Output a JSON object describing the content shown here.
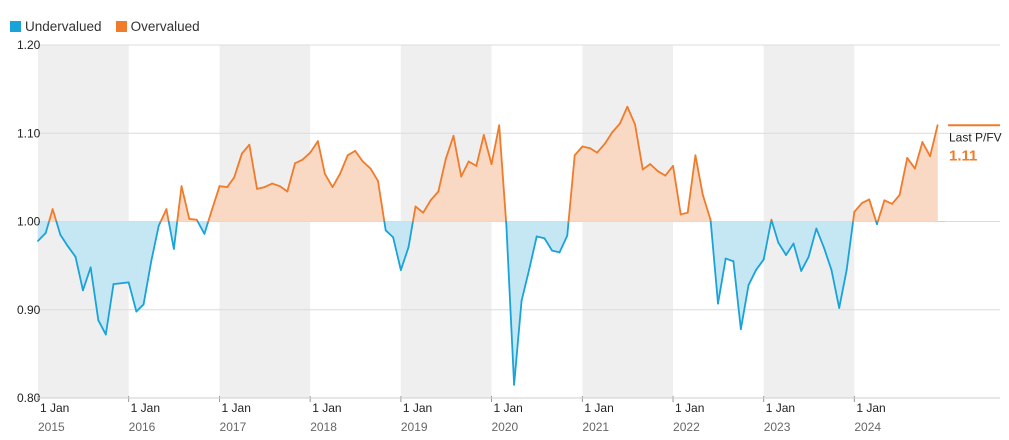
{
  "legend": [
    {
      "label": "Undervalued",
      "color": "#1aa3d9"
    },
    {
      "label": "Overvalued",
      "color": "#f07b2b"
    }
  ],
  "annotation": {
    "label": "Last P/FV",
    "value": "1.11"
  },
  "chart_data": {
    "type": "area",
    "title": "",
    "xlabel": "",
    "ylabel": "",
    "baseline": 1.0,
    "ylim": [
      0.8,
      1.2
    ],
    "yticks": [
      {
        "value": 1.2,
        "label": "1.20"
      },
      {
        "value": 1.1,
        "label": "1.10"
      },
      {
        "value": 1.0,
        "label": "1.00"
      },
      {
        "value": 0.9,
        "label": "0.90"
      },
      {
        "value": 0.8,
        "label": "0.80"
      }
    ],
    "xlim": [
      "2015-01-01",
      "2024-12-31"
    ],
    "year_bands": [
      "2015",
      "2017",
      "2019",
      "2021",
      "2023"
    ],
    "xticks": [
      {
        "date": "2015-01-01",
        "label": "1 Jan",
        "year": "2015"
      },
      {
        "date": "2016-01-01",
        "label": "1 Jan",
        "year": "2016"
      },
      {
        "date": "2017-01-01",
        "label": "1 Jan",
        "year": "2017"
      },
      {
        "date": "2018-01-01",
        "label": "1 Jan",
        "year": "2018"
      },
      {
        "date": "2019-01-01",
        "label": "1 Jan",
        "year": "2019"
      },
      {
        "date": "2020-01-01",
        "label": "1 Jan",
        "year": "2020"
      },
      {
        "date": "2021-01-01",
        "label": "1 Jan",
        "year": "2021"
      },
      {
        "date": "2022-01-01",
        "label": "1 Jan",
        "year": "2022"
      },
      {
        "date": "2023-01-01",
        "label": "1 Jan",
        "year": "2023"
      },
      {
        "date": "2024-01-01",
        "label": "1 Jan",
        "year": "2024"
      }
    ],
    "series": [
      {
        "name": "P/FV",
        "colors": {
          "above": "#f07b2b",
          "below": "#1aa3d9",
          "above_fill": "#f9d8c4",
          "below_fill": "#c5e7f3"
        },
        "points": [
          [
            "2015-01-01",
            0.978
          ],
          [
            "2015-02-01",
            0.987
          ],
          [
            "2015-03-01",
            1.014
          ],
          [
            "2015-04-01",
            0.985
          ],
          [
            "2015-05-01",
            0.972
          ],
          [
            "2015-06-01",
            0.96
          ],
          [
            "2015-07-01",
            0.922
          ],
          [
            "2015-08-01",
            0.948
          ],
          [
            "2015-09-01",
            0.888
          ],
          [
            "2015-10-01",
            0.872
          ],
          [
            "2015-11-01",
            0.929
          ],
          [
            "2015-12-01",
            0.93
          ],
          [
            "2016-01-01",
            0.931
          ],
          [
            "2016-02-01",
            0.898
          ],
          [
            "2016-03-01",
            0.906
          ],
          [
            "2016-04-01",
            0.955
          ],
          [
            "2016-05-01",
            0.995
          ],
          [
            "2016-06-01",
            1.014
          ],
          [
            "2016-07-01",
            0.969
          ],
          [
            "2016-08-01",
            1.04
          ],
          [
            "2016-09-01",
            1.003
          ],
          [
            "2016-10-01",
            1.002
          ],
          [
            "2016-11-01",
            0.986
          ],
          [
            "2016-12-01",
            1.013
          ],
          [
            "2017-01-01",
            1.04
          ],
          [
            "2017-02-01",
            1.039
          ],
          [
            "2017-03-01",
            1.05
          ],
          [
            "2017-04-01",
            1.077
          ],
          [
            "2017-05-01",
            1.087
          ],
          [
            "2017-06-01",
            1.037
          ],
          [
            "2017-07-01",
            1.039
          ],
          [
            "2017-08-01",
            1.043
          ],
          [
            "2017-09-01",
            1.04
          ],
          [
            "2017-10-01",
            1.034
          ],
          [
            "2017-11-01",
            1.066
          ],
          [
            "2017-12-01",
            1.07
          ],
          [
            "2018-01-01",
            1.078
          ],
          [
            "2018-02-01",
            1.091
          ],
          [
            "2018-03-01",
            1.054
          ],
          [
            "2018-04-01",
            1.039
          ],
          [
            "2018-05-01",
            1.054
          ],
          [
            "2018-06-01",
            1.075
          ],
          [
            "2018-07-01",
            1.08
          ],
          [
            "2018-08-01",
            1.068
          ],
          [
            "2018-09-01",
            1.06
          ],
          [
            "2018-10-01",
            1.046
          ],
          [
            "2018-11-01",
            0.99
          ],
          [
            "2018-12-01",
            0.982
          ],
          [
            "2019-01-01",
            0.945
          ],
          [
            "2019-02-01",
            0.971
          ],
          [
            "2019-03-01",
            1.017
          ],
          [
            "2019-04-01",
            1.01
          ],
          [
            "2019-05-01",
            1.024
          ],
          [
            "2019-06-01",
            1.034
          ],
          [
            "2019-07-01",
            1.071
          ],
          [
            "2019-08-01",
            1.097
          ],
          [
            "2019-09-01",
            1.051
          ],
          [
            "2019-10-01",
            1.068
          ],
          [
            "2019-11-01",
            1.063
          ],
          [
            "2019-12-01",
            1.098
          ],
          [
            "2020-01-01",
            1.065
          ],
          [
            "2020-02-01",
            1.109
          ],
          [
            "2020-03-01",
            0.995
          ],
          [
            "2020-04-01",
            0.815
          ],
          [
            "2020-05-01",
            0.91
          ],
          [
            "2020-06-01",
            0.946
          ],
          [
            "2020-07-01",
            0.983
          ],
          [
            "2020-08-01",
            0.981
          ],
          [
            "2020-09-01",
            0.967
          ],
          [
            "2020-10-01",
            0.965
          ],
          [
            "2020-11-01",
            0.984
          ],
          [
            "2020-12-01",
            1.075
          ],
          [
            "2021-01-01",
            1.085
          ],
          [
            "2021-02-01",
            1.083
          ],
          [
            "2021-03-01",
            1.078
          ],
          [
            "2021-04-01",
            1.088
          ],
          [
            "2021-05-01",
            1.101
          ],
          [
            "2021-06-01",
            1.111
          ],
          [
            "2021-07-01",
            1.13
          ],
          [
            "2021-08-01",
            1.11
          ],
          [
            "2021-09-01",
            1.059
          ],
          [
            "2021-10-01",
            1.065
          ],
          [
            "2021-11-01",
            1.057
          ],
          [
            "2021-12-01",
            1.052
          ],
          [
            "2022-01-01",
            1.063
          ],
          [
            "2022-02-01",
            1.008
          ],
          [
            "2022-03-01",
            1.01
          ],
          [
            "2022-04-01",
            1.075
          ],
          [
            "2022-05-01",
            1.03
          ],
          [
            "2022-06-01",
            1.002
          ],
          [
            "2022-07-01",
            0.907
          ],
          [
            "2022-08-01",
            0.958
          ],
          [
            "2022-09-01",
            0.955
          ],
          [
            "2022-10-01",
            0.878
          ],
          [
            "2022-11-01",
            0.928
          ],
          [
            "2022-12-01",
            0.945
          ],
          [
            "2023-01-01",
            0.957
          ],
          [
            "2023-02-01",
            1.002
          ],
          [
            "2023-03-01",
            0.976
          ],
          [
            "2023-04-01",
            0.962
          ],
          [
            "2023-05-01",
            0.975
          ],
          [
            "2023-06-01",
            0.944
          ],
          [
            "2023-07-01",
            0.96
          ],
          [
            "2023-08-01",
            0.992
          ],
          [
            "2023-09-01",
            0.97
          ],
          [
            "2023-10-01",
            0.945
          ],
          [
            "2023-11-01",
            0.902
          ],
          [
            "2023-12-01",
            0.945
          ],
          [
            "2024-01-01",
            1.011
          ],
          [
            "2024-02-01",
            1.021
          ],
          [
            "2024-03-01",
            1.025
          ],
          [
            "2024-04-01",
            0.997
          ],
          [
            "2024-05-01",
            1.024
          ],
          [
            "2024-06-01",
            1.02
          ],
          [
            "2024-07-01",
            1.03
          ],
          [
            "2024-08-01",
            1.072
          ],
          [
            "2024-09-01",
            1.06
          ],
          [
            "2024-10-01",
            1.09
          ],
          [
            "2024-11-01",
            1.074
          ],
          [
            "2024-12-01",
            1.109
          ]
        ]
      }
    ]
  }
}
